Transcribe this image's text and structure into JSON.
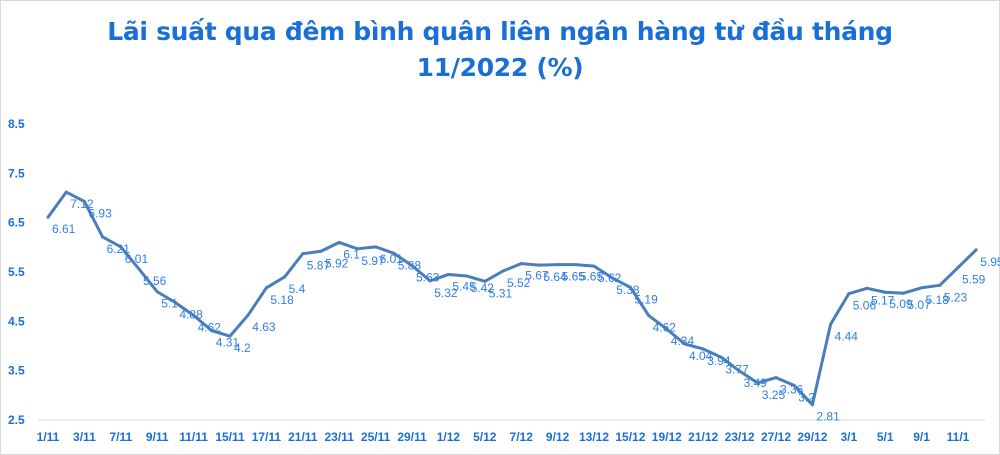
{
  "chart_data": {
    "type": "line",
    "title_line1": "Lãi suất qua đêm bình quân liên ngân hàng từ đầu tháng",
    "title_line2": "11/2022 (%)",
    "xlabel": "",
    "ylabel": "",
    "ylim": [
      2.5,
      8.5
    ],
    "y_ticks": [
      "2.5",
      "3.5",
      "4.5",
      "5.5",
      "6.5",
      "7.5",
      "8.5"
    ],
    "x_tick_labels": [
      "1/11",
      "3/11",
      "7/11",
      "9/11",
      "11/11",
      "15/11",
      "17/11",
      "21/11",
      "23/11",
      "25/11",
      "29/11",
      "1/12",
      "5/12",
      "7/12",
      "9/12",
      "13/12",
      "15/12",
      "19/12",
      "21/12",
      "23/12",
      "27/12",
      "29/12",
      "3/1",
      "5/1",
      "9/1",
      "11/1"
    ],
    "x_tick_every": 2,
    "grid": false,
    "legend": "none",
    "line_color": "#4a7ebb",
    "label_color": "#2f7fe0",
    "values": [
      6.61,
      7.12,
      6.93,
      6.21,
      6.01,
      5.56,
      5.1,
      4.88,
      4.62,
      4.31,
      4.2,
      4.63,
      5.18,
      5.4,
      5.87,
      5.92,
      6.1,
      5.97,
      6.01,
      5.88,
      5.63,
      5.32,
      5.45,
      5.42,
      5.31,
      5.52,
      5.67,
      5.64,
      5.65,
      5.65,
      5.62,
      5.38,
      5.19,
      4.62,
      4.34,
      4.04,
      3.94,
      3.77,
      3.49,
      3.25,
      3.36,
      3.2,
      2.81,
      4.44,
      5.06,
      5.17,
      5.09,
      5.07,
      5.18,
      5.23,
      5.59,
      5.95
    ]
  }
}
